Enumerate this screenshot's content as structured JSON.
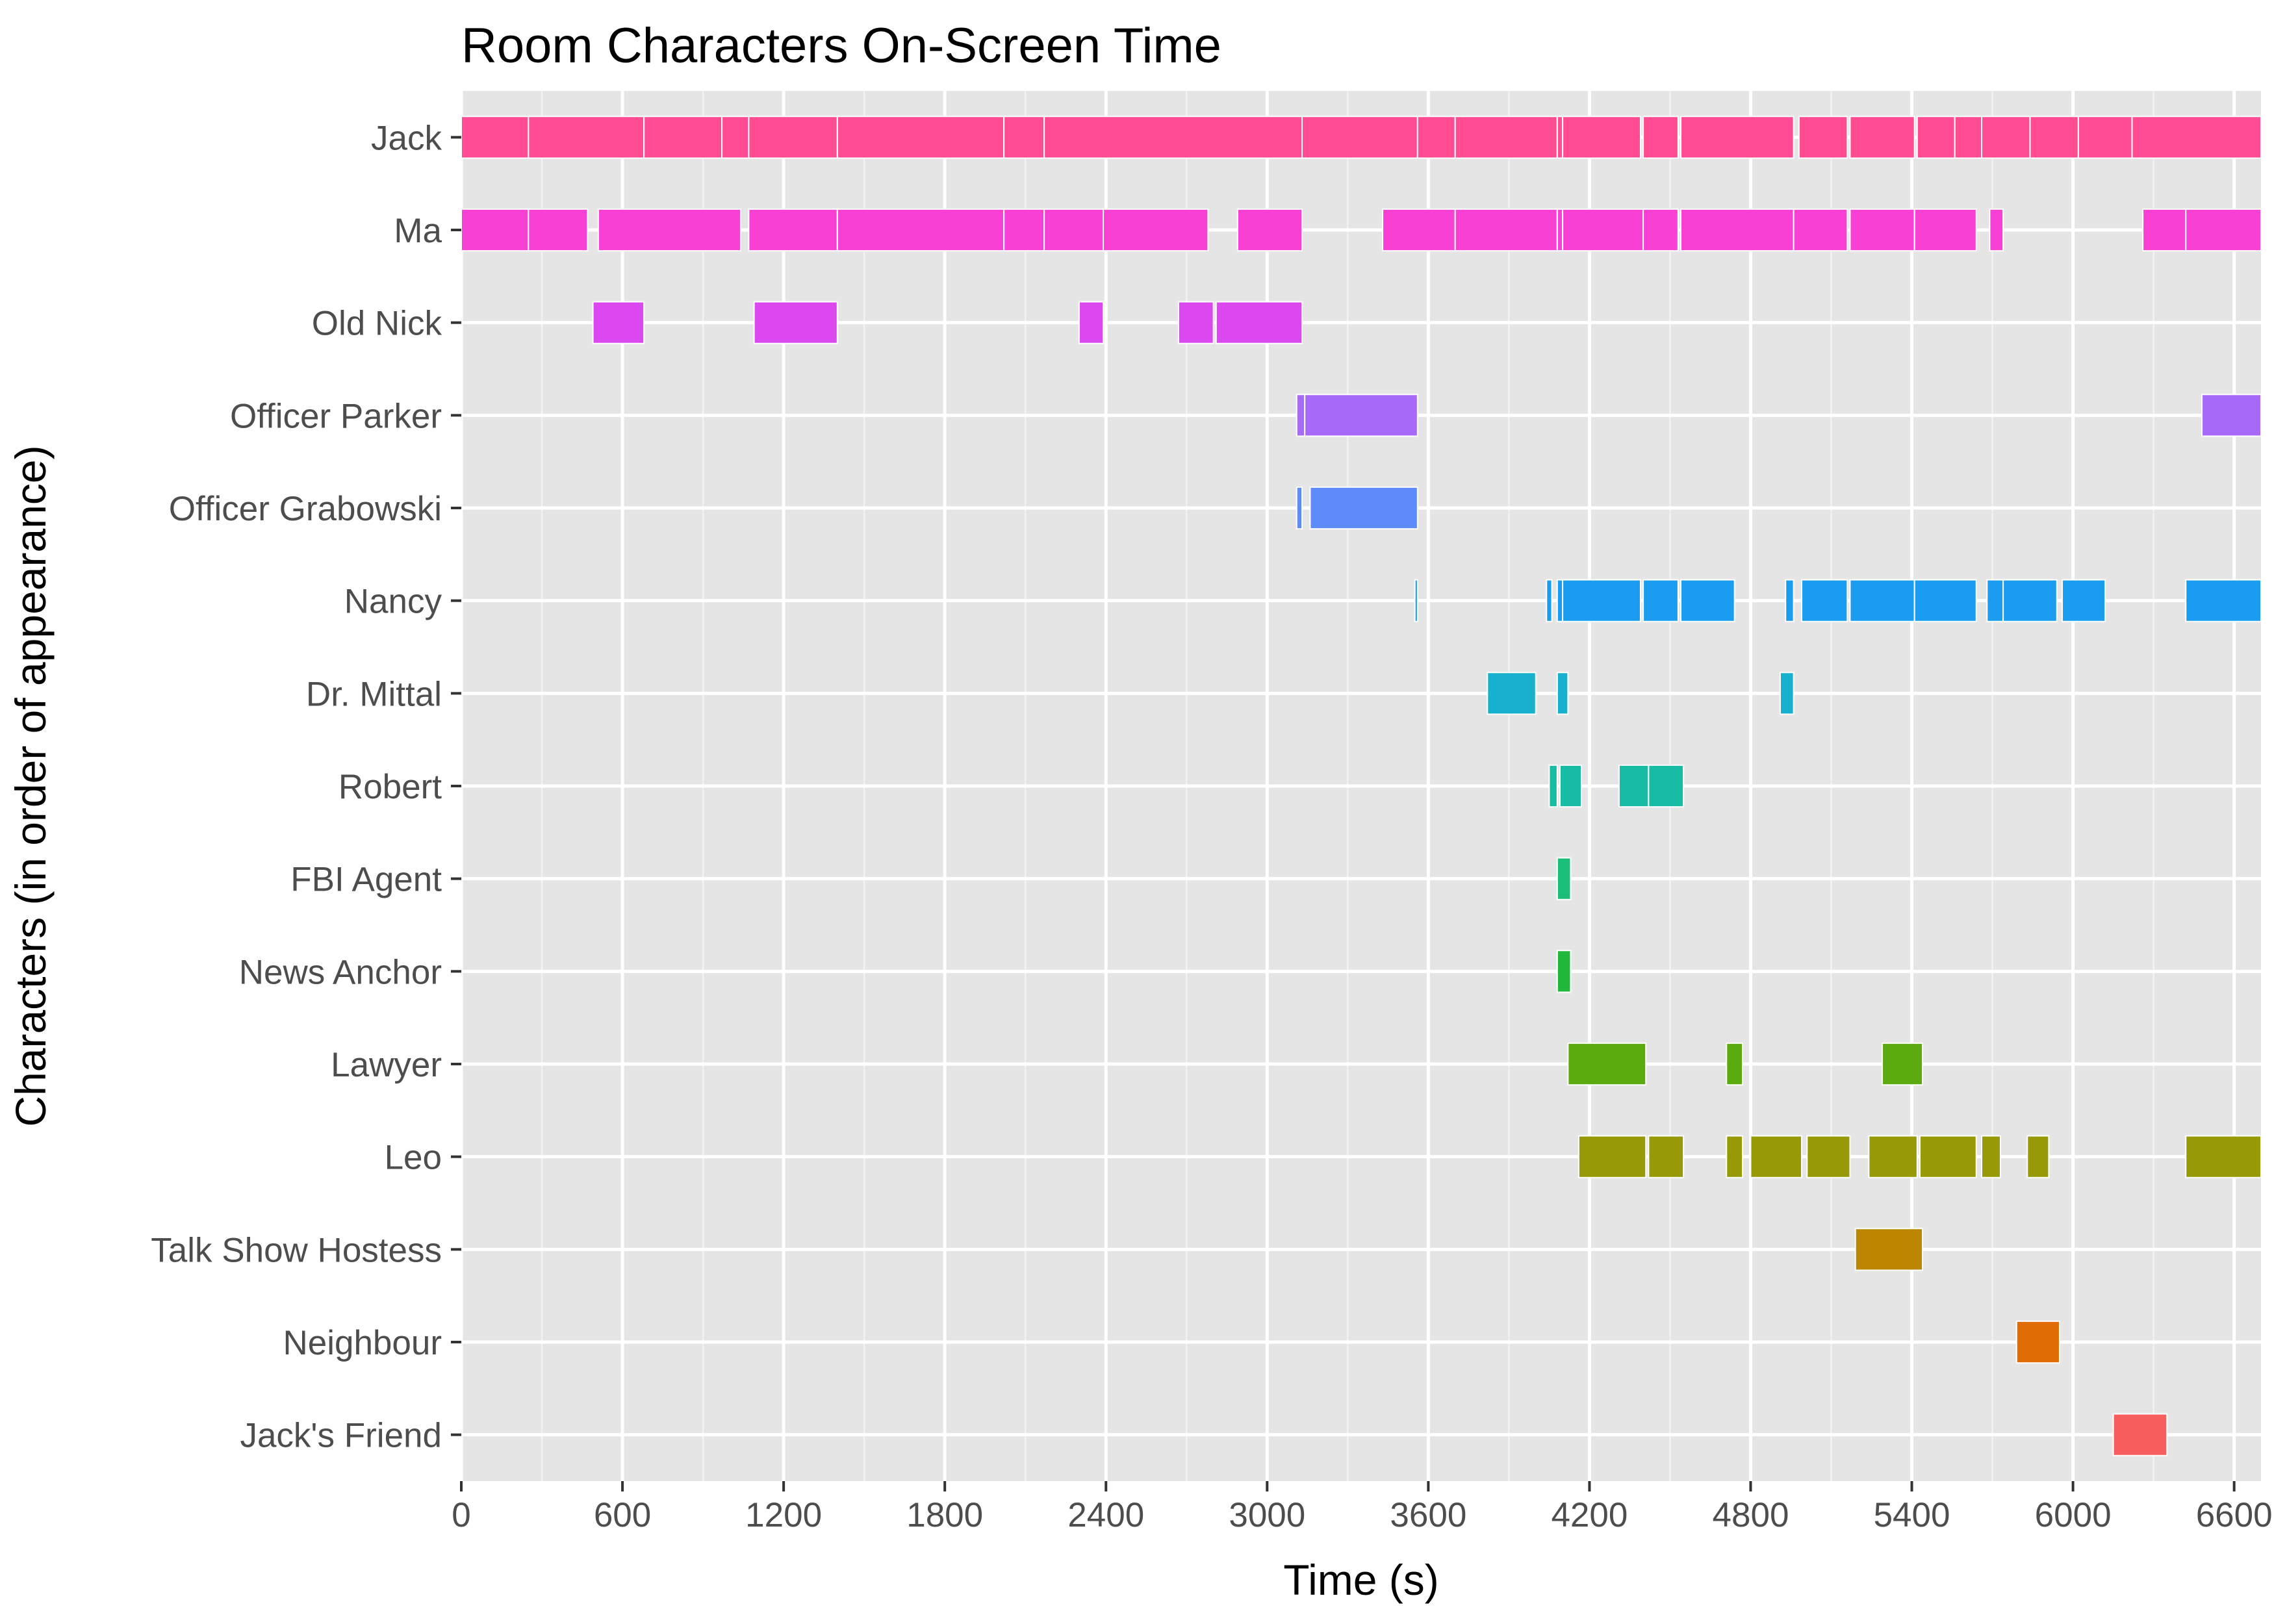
{
  "chart_data": {
    "type": "gantt",
    "title": "Room Characters On-Screen Time",
    "xlabel": "Time (s)",
    "ylabel": "Characters (in order of appearance)",
    "xlim": [
      0,
      6700
    ],
    "xticks": [
      0,
      600,
      1200,
      1800,
      2400,
      3000,
      3600,
      4200,
      4800,
      5400,
      6000,
      6600
    ],
    "grid": true,
    "legend": "none",
    "characters": [
      {
        "name": "Jack",
        "color": "#FF4B91",
        "segments": [
          [
            0,
            250
          ],
          [
            250,
            680
          ],
          [
            680,
            970
          ],
          [
            970,
            1070
          ],
          [
            1070,
            1400
          ],
          [
            1400,
            2020
          ],
          [
            2020,
            2170
          ],
          [
            2170,
            3130
          ],
          [
            3130,
            3560
          ],
          [
            3560,
            3700
          ],
          [
            3700,
            4080
          ],
          [
            4080,
            4100
          ],
          [
            4100,
            4390
          ],
          [
            4400,
            4530
          ],
          [
            4540,
            4960
          ],
          [
            4980,
            5160
          ],
          [
            5170,
            5410
          ],
          [
            5420,
            5560
          ],
          [
            5560,
            5660
          ],
          [
            5660,
            5840
          ],
          [
            5840,
            6020
          ],
          [
            6020,
            6220
          ],
          [
            6220,
            6700
          ]
        ]
      },
      {
        "name": "Ma",
        "color": "#F840D4",
        "segments": [
          [
            0,
            250
          ],
          [
            250,
            470
          ],
          [
            510,
            1040
          ],
          [
            1070,
            1400
          ],
          [
            1400,
            2020
          ],
          [
            2020,
            2170
          ],
          [
            2170,
            2390
          ],
          [
            2390,
            2780
          ],
          [
            2890,
            3130
          ],
          [
            3430,
            3700
          ],
          [
            3700,
            4080
          ],
          [
            4080,
            4100
          ],
          [
            4100,
            4400
          ],
          [
            4400,
            4530
          ],
          [
            4540,
            4960
          ],
          [
            4960,
            5160
          ],
          [
            5170,
            5410
          ],
          [
            5410,
            5640
          ],
          [
            5690,
            5740
          ],
          [
            6260,
            6420
          ],
          [
            6420,
            6700
          ]
        ]
      },
      {
        "name": "Old Nick",
        "color": "#DC48F0",
        "segments": [
          [
            490,
            680
          ],
          [
            1090,
            1400
          ],
          [
            2300,
            2390
          ],
          [
            2670,
            2800
          ],
          [
            2810,
            3130
          ]
        ]
      },
      {
        "name": "Officer Parker",
        "color": "#A76AF8",
        "segments": [
          [
            3110,
            3140
          ],
          [
            3140,
            3560
          ],
          [
            6480,
            6700
          ]
        ]
      },
      {
        "name": "Officer Grabowski",
        "color": "#5D8BF9",
        "segments": [
          [
            3110,
            3130
          ],
          [
            3160,
            3560
          ]
        ]
      },
      {
        "name": "Nancy",
        "color": "#1A9DF0",
        "segments": [
          [
            3550,
            3560
          ],
          [
            4040,
            4060
          ],
          [
            4080,
            4100
          ],
          [
            4100,
            4390
          ],
          [
            4400,
            4530
          ],
          [
            4540,
            4740
          ],
          [
            4930,
            4960
          ],
          [
            4990,
            5160
          ],
          [
            5170,
            5410
          ],
          [
            5410,
            5640
          ],
          [
            5680,
            5740
          ],
          [
            5740,
            5940
          ],
          [
            5960,
            6120
          ],
          [
            6420,
            6700
          ]
        ]
      },
      {
        "name": "Dr. Mittal",
        "color": "#17B0CF",
        "segments": [
          [
            3820,
            4000
          ],
          [
            4080,
            4120
          ],
          [
            4910,
            4960
          ]
        ]
      },
      {
        "name": "Robert",
        "color": "#18BBA4",
        "segments": [
          [
            4050,
            4080
          ],
          [
            4090,
            4170
          ],
          [
            4310,
            4420
          ],
          [
            4420,
            4550
          ]
        ]
      },
      {
        "name": "FBI Agent",
        "color": "#1CBD78",
        "segments": [
          [
            4080,
            4130
          ]
        ]
      },
      {
        "name": "News Anchor",
        "color": "#21B73A",
        "segments": [
          [
            4080,
            4130
          ]
        ]
      },
      {
        "name": "Lawyer",
        "color": "#5AAA10",
        "segments": [
          [
            4120,
            4410
          ],
          [
            4710,
            4770
          ],
          [
            5290,
            5440
          ]
        ]
      },
      {
        "name": "Leo",
        "color": "#979A06",
        "segments": [
          [
            4160,
            4410
          ],
          [
            4420,
            4550
          ],
          [
            4710,
            4770
          ],
          [
            4800,
            4990
          ],
          [
            5010,
            5170
          ],
          [
            5240,
            5420
          ],
          [
            5430,
            5640
          ],
          [
            5660,
            5730
          ],
          [
            5830,
            5910
          ],
          [
            6420,
            6700
          ]
        ]
      },
      {
        "name": "Talk Show Hostess",
        "color": "#BD8602",
        "segments": [
          [
            5190,
            5440
          ]
        ]
      },
      {
        "name": "Neighbour",
        "color": "#E06C04",
        "segments": [
          [
            5790,
            5950
          ]
        ]
      },
      {
        "name": "Jack's Friend",
        "color": "#F65E5E",
        "segments": [
          [
            6150,
            6350
          ]
        ]
      }
    ]
  }
}
